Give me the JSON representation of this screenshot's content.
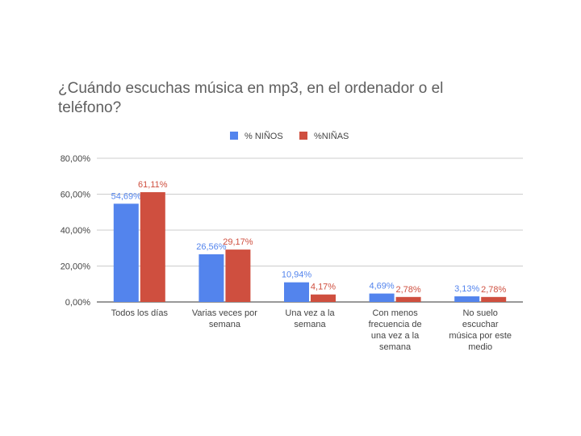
{
  "chart_data": {
    "type": "bar",
    "title": "¿Cuándo escuchas música en mp3, en el ordenador o el teléfono?",
    "categories": [
      [
        "Todos los días"
      ],
      [
        "Varias veces por",
        "semana"
      ],
      [
        "Una vez a la",
        "semana"
      ],
      [
        "Con menos",
        "frecuencia de",
        "una vez a la",
        "semana"
      ],
      [
        "No suelo",
        "escuchar",
        "música por este",
        "medio"
      ]
    ],
    "series": [
      {
        "name": "% NIÑOS",
        "color": "#5384ed",
        "values": [
          54.69,
          26.56,
          10.94,
          4.69,
          3.13
        ],
        "labels": [
          "54,69%",
          "26,56%",
          "10,94%",
          "4,69%",
          "3,13%"
        ]
      },
      {
        "name": "%NIÑAS",
        "color": "#cf4f3f",
        "values": [
          61.11,
          29.17,
          4.17,
          2.78,
          2.78
        ],
        "labels": [
          "61,11%",
          "29,17%",
          "4,17%",
          "2,78%",
          "2,78%"
        ]
      }
    ],
    "ylim": [
      0,
      80
    ],
    "yticks": [
      "0,00%",
      "20,00%",
      "40,00%",
      "60,00%",
      "80,00%"
    ],
    "ytick_values": [
      0,
      20,
      40,
      60,
      80
    ],
    "legend_position": "top-center",
    "grid": true
  }
}
